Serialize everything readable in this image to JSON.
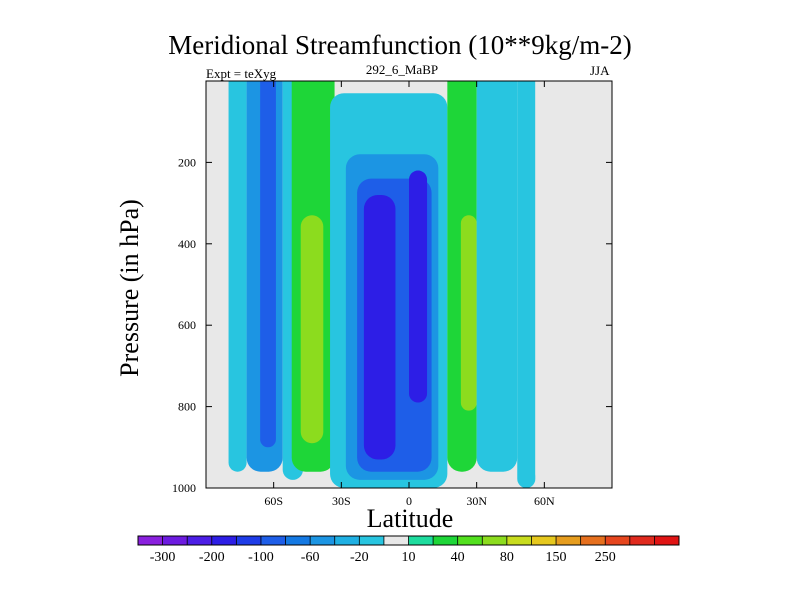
{
  "title": "Meridional Streamfunction (10**9kg/m-2)",
  "left_label": "Expt = teXyg",
  "center_label": "292_6_MaBP",
  "right_label": "JJA",
  "chart_data": {
    "type": "heatmap",
    "title": "Meridional Streamfunction (10**9kg/m-2)",
    "xlabel": "Latitude",
    "ylabel": "Pressure (in hPa)",
    "xlim": [
      -90,
      90
    ],
    "ylim": [
      1000,
      0
    ],
    "xticks": [
      {
        "value": -60,
        "label": "60S"
      },
      {
        "value": -30,
        "label": "30S"
      },
      {
        "value": 0,
        "label": "0"
      },
      {
        "value": 30,
        "label": "30N"
      },
      {
        "value": 60,
        "label": "60N"
      }
    ],
    "yticks": [
      {
        "value": 200,
        "label": "200"
      },
      {
        "value": 400,
        "label": "400"
      },
      {
        "value": 600,
        "label": "600"
      },
      {
        "value": 800,
        "label": "800"
      },
      {
        "value": 1000,
        "label": "1000"
      }
    ],
    "missing_color": "#e8e8e8",
    "colorbar": {
      "colors": [
        "#8a20de",
        "#6d1be0",
        "#4c1ee6",
        "#2d1ee6",
        "#1e3ce8",
        "#1e5ee8",
        "#1479e3",
        "#1c95e3",
        "#1fb0e3",
        "#28c5e0",
        "#e8e8e8",
        "#1edc9e",
        "#1ed638",
        "#52e01e",
        "#8cdc1e",
        "#c8dc1e",
        "#e6c81e",
        "#e69d1e",
        "#e6701e",
        "#e6461e",
        "#e02a1e",
        "#e01414"
      ],
      "labels": [
        "-300",
        "-200",
        "-100",
        "-60",
        "-20",
        "10",
        "40",
        "80",
        "150",
        "250"
      ]
    },
    "bands": [
      {
        "lat_range": [
          -90,
          -70
        ],
        "level": 10,
        "color": "#e8e8e8",
        "p_top": 0,
        "p_bottom": 1000
      },
      {
        "lat_range": [
          -80,
          -72
        ],
        "level": -20,
        "color": "#28c5e0",
        "p_top": 0,
        "p_bottom": 960
      },
      {
        "lat_range": [
          -72,
          -56
        ],
        "level": -60,
        "color": "#1c95e3",
        "p_top": 0,
        "p_bottom": 960
      },
      {
        "lat_range": [
          -66,
          -59
        ],
        "level": -100,
        "color": "#1e5ee8",
        "p_top": 0,
        "p_bottom": 900
      },
      {
        "lat_range": [
          -56,
          -47
        ],
        "level": -20,
        "color": "#28c5e0",
        "p_top": 0,
        "p_bottom": 980
      },
      {
        "lat_range": [
          -52,
          -33
        ],
        "level": 40,
        "color": "#1ed638",
        "p_top": 0,
        "p_bottom": 960
      },
      {
        "lat_range": [
          -48,
          -38
        ],
        "level": 80,
        "color": "#8cdc1e",
        "p_top": 330,
        "p_bottom": 890
      },
      {
        "lat_range": [
          -35,
          17
        ],
        "level": -20,
        "color": "#28c5e0",
        "p_top": 30,
        "p_bottom": 1000
      },
      {
        "lat_range": [
          -28,
          13
        ],
        "level": -60,
        "color": "#1c95e3",
        "p_top": 180,
        "p_bottom": 980
      },
      {
        "lat_range": [
          -23,
          10
        ],
        "level": -100,
        "color": "#1e5ee8",
        "p_top": 240,
        "p_bottom": 960
      },
      {
        "lat_range": [
          -20,
          -6
        ],
        "level": -200,
        "color": "#2d1ee6",
        "p_top": 280,
        "p_bottom": 930
      },
      {
        "lat_range": [
          0,
          8
        ],
        "level": -200,
        "color": "#2d1ee6",
        "p_top": 220,
        "p_bottom": 790
      },
      {
        "lat_range": [
          17,
          30
        ],
        "level": 40,
        "color": "#1ed638",
        "p_top": 0,
        "p_bottom": 960
      },
      {
        "lat_range": [
          23,
          30
        ],
        "level": 80,
        "color": "#8cdc1e",
        "p_top": 330,
        "p_bottom": 810
      },
      {
        "lat_range": [
          30,
          48
        ],
        "level": -20,
        "color": "#28c5e0",
        "p_top": 0,
        "p_bottom": 960
      },
      {
        "lat_range": [
          48,
          56
        ],
        "level": -20,
        "color": "#28c5e0",
        "p_top": 0,
        "p_bottom": 1000
      },
      {
        "lat_range": [
          56,
          90
        ],
        "level": 10,
        "color": "#e8e8e8",
        "p_top": 0,
        "p_bottom": 1000
      }
    ]
  }
}
